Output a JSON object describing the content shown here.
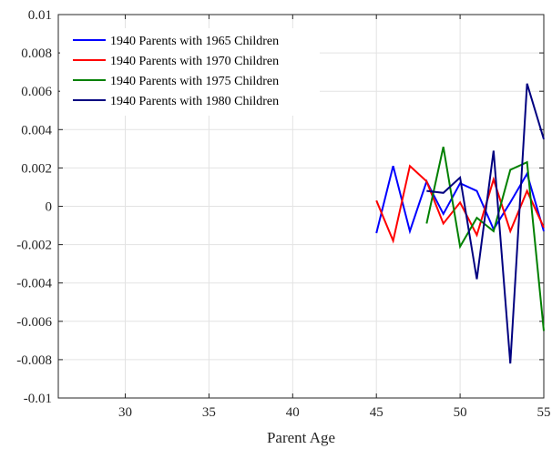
{
  "chart_data": {
    "type": "line",
    "title": "",
    "xlabel": "Parent Age",
    "ylabel": "",
    "xlim": [
      26,
      55
    ],
    "ylim": [
      -0.01,
      0.01
    ],
    "grid": true,
    "legend_position": "top-left",
    "x_ticks": [
      30,
      35,
      40,
      45,
      50,
      55
    ],
    "x_tick_labels": [
      "30",
      "35",
      "40",
      "45",
      "50",
      "55"
    ],
    "y_ticks": [
      0.01,
      0.008,
      0.006,
      0.004,
      0.002,
      0,
      -0.002,
      -0.004,
      -0.006,
      -0.008,
      -0.01
    ],
    "y_tick_labels": [
      "0.01",
      "0.008",
      "0.006",
      "0.004",
      "0.002",
      "0",
      "-0.002",
      "-0.004",
      "-0.006",
      "-0.008",
      "-0.01"
    ],
    "series": [
      {
        "name": "1940 Parents with 1965 Children",
        "color": "#0000ff",
        "x": [
          45,
          46,
          47,
          48,
          49,
          50,
          51,
          52,
          53,
          54,
          55
        ],
        "y": [
          -0.0014,
          0.0021,
          -0.0013,
          0.0013,
          -0.0004,
          0.0012,
          0.0008,
          -0.0012,
          0.0002,
          0.0017,
          -0.0013
        ]
      },
      {
        "name": "1940 Parents with 1970 Children",
        "color": "#ff0000",
        "x": [
          45,
          46,
          47,
          48,
          49,
          50,
          51,
          52,
          53,
          54,
          55
        ],
        "y": [
          0.0003,
          -0.0018,
          0.0021,
          0.0013,
          -0.0009,
          0.0002,
          -0.0015,
          0.0014,
          -0.0013,
          0.0008,
          -0.0011
        ]
      },
      {
        "name": "1940 Parents with 1975 Children",
        "color": "#008000",
        "x": [
          48,
          49,
          50,
          51,
          52,
          53,
          54,
          55
        ],
        "y": [
          -0.0009,
          0.0031,
          -0.0021,
          -0.0006,
          -0.0013,
          0.0019,
          0.0023,
          -0.0065
        ]
      },
      {
        "name": "1940 Parents with 1980 Children",
        "color": "#000080",
        "x": [
          48,
          49,
          50,
          51,
          52,
          53,
          54,
          55
        ],
        "y": [
          0.0008,
          0.0007,
          0.0015,
          -0.0038,
          0.0029,
          -0.0082,
          0.0064,
          0.0035
        ]
      }
    ]
  }
}
